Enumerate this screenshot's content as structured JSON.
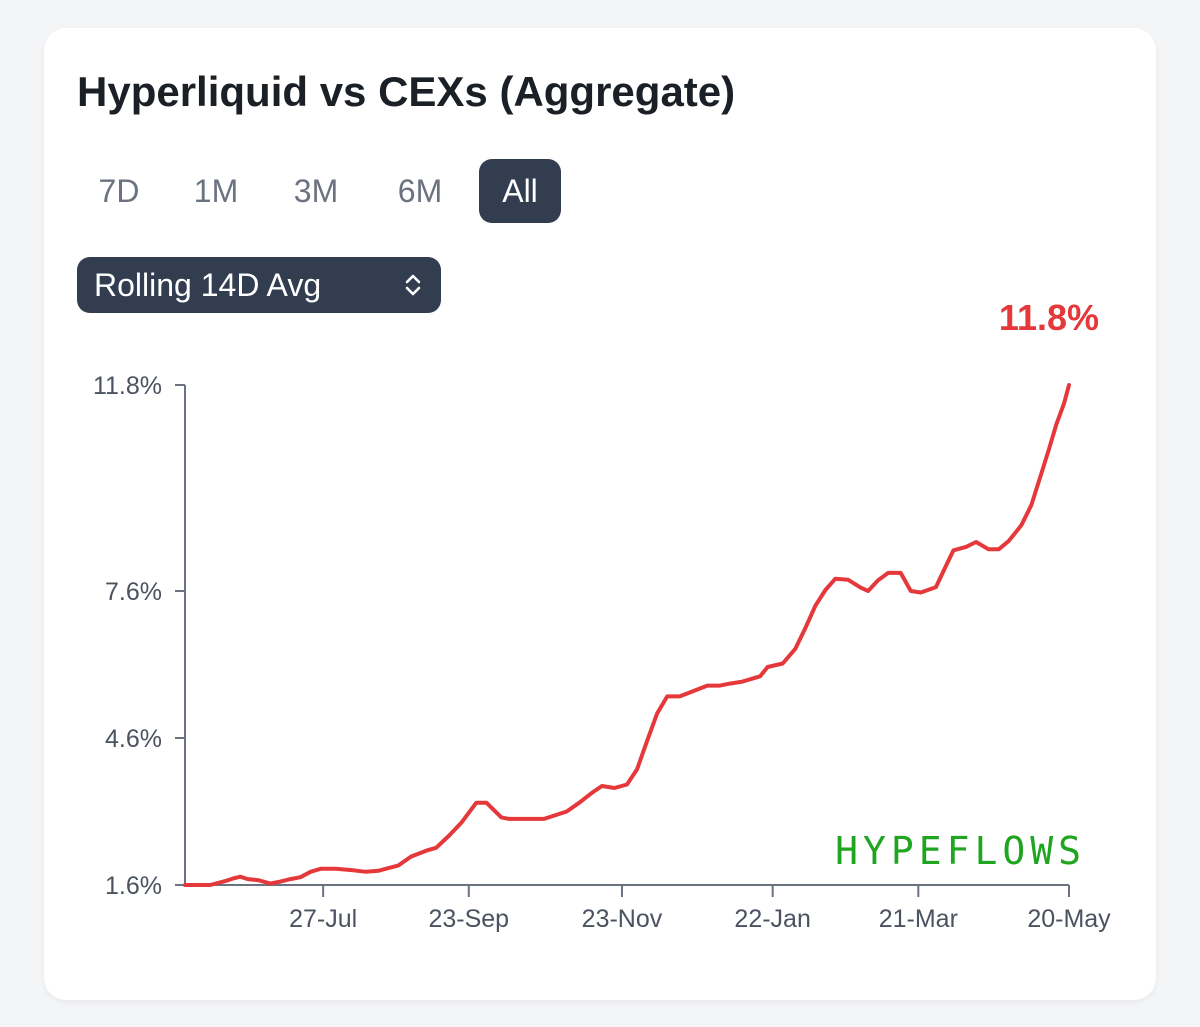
{
  "card": {
    "title": "Hyperliquid vs CEXs (Aggregate)",
    "tabs": [
      {
        "label": "7D",
        "active": false
      },
      {
        "label": "1M",
        "active": false
      },
      {
        "label": "3M",
        "active": false
      },
      {
        "label": "6M",
        "active": false
      },
      {
        "label": "All",
        "active": true
      }
    ],
    "select": {
      "value": "Rolling 14D Avg",
      "icon": "chevron-up-down-icon"
    }
  },
  "colors": {
    "line": "#e5383b",
    "axis": "#6b7280",
    "watermark": "#1fa51f",
    "button_active": "#323d4f"
  },
  "chart_data": {
    "type": "line",
    "title": "",
    "xlabel": "",
    "ylabel": "",
    "current_value_label": "11.8%",
    "watermark": "HYPEFLOWS",
    "ylim": [
      1.6,
      11.8
    ],
    "y_ticks": [
      {
        "value": 1.6,
        "label": "1.6%"
      },
      {
        "value": 4.6,
        "label": "4.6%"
      },
      {
        "value": 7.6,
        "label": "7.6%"
      },
      {
        "value": 11.8,
        "label": "11.8%"
      }
    ],
    "xlim": [
      "2024-06-02",
      "2025-05-20"
    ],
    "x_ticks": [
      {
        "value": "2024-07-27",
        "label": "27-Jul"
      },
      {
        "value": "2024-09-23",
        "label": "23-Sep"
      },
      {
        "value": "2024-11-23",
        "label": "23-Nov"
      },
      {
        "value": "2025-01-22",
        "label": "22-Jan"
      },
      {
        "value": "2025-03-21",
        "label": "21-Mar"
      },
      {
        "value": "2025-05-20",
        "label": "20-May"
      }
    ],
    "series": [
      {
        "x": [
          "2024-06-02",
          "2024-06-12",
          "2024-06-18",
          "2024-06-21",
          "2024-06-24",
          "2024-06-27",
          "2024-07-01",
          "2024-07-06",
          "2024-07-10",
          "2024-07-14",
          "2024-07-18",
          "2024-07-22",
          "2024-07-26",
          "2024-08-01",
          "2024-08-08",
          "2024-08-13",
          "2024-08-18",
          "2024-08-26",
          "2024-08-31",
          "2024-09-06",
          "2024-09-10",
          "2024-09-15",
          "2024-09-20",
          "2024-09-26",
          "2024-09-30",
          "2024-10-06",
          "2024-10-09",
          "2024-10-14",
          "2024-10-23",
          "2024-11-01",
          "2024-11-06",
          "2024-11-11",
          "2024-11-15",
          "2024-11-20",
          "2024-11-25",
          "2024-11-29",
          "2024-12-03",
          "2024-12-07",
          "2024-12-11",
          "2024-12-16",
          "2024-12-22",
          "2024-12-27",
          "2025-01-01",
          "2025-01-05",
          "2025-01-10",
          "2025-01-17",
          "2025-01-20",
          "2025-01-26",
          "2025-01-31",
          "2025-02-04",
          "2025-02-08",
          "2025-02-12",
          "2025-02-16",
          "2025-02-21",
          "2025-02-26",
          "2025-03-01",
          "2025-03-05",
          "2025-03-09",
          "2025-03-14",
          "2025-03-18",
          "2025-03-22",
          "2025-03-28",
          "2025-04-01",
          "2025-04-04",
          "2025-04-09",
          "2025-04-13",
          "2025-04-18",
          "2025-04-22",
          "2025-04-26",
          "2025-05-01",
          "2025-05-05",
          "2025-05-09",
          "2025-05-12",
          "2025-05-15",
          "2025-05-18",
          "2025-05-20"
        ],
        "y": [
          1.6,
          1.6,
          1.68,
          1.73,
          1.77,
          1.72,
          1.7,
          1.63,
          1.67,
          1.72,
          1.76,
          1.87,
          1.93,
          1.93,
          1.9,
          1.87,
          1.89,
          2.0,
          2.18,
          2.3,
          2.36,
          2.6,
          2.87,
          3.28,
          3.28,
          2.98,
          2.95,
          2.95,
          2.95,
          3.1,
          3.28,
          3.48,
          3.62,
          3.58,
          3.65,
          3.96,
          4.54,
          5.1,
          5.45,
          5.45,
          5.57,
          5.67,
          5.67,
          5.71,
          5.75,
          5.86,
          6.05,
          6.12,
          6.42,
          6.84,
          7.3,
          7.62,
          7.85,
          7.83,
          7.67,
          7.6,
          7.82,
          7.97,
          7.97,
          7.6,
          7.57,
          7.68,
          8.11,
          8.43,
          8.5,
          8.6,
          8.45,
          8.45,
          8.62,
          8.94,
          9.35,
          10.0,
          10.49,
          11.0,
          11.42,
          11.8
        ]
      }
    ]
  }
}
